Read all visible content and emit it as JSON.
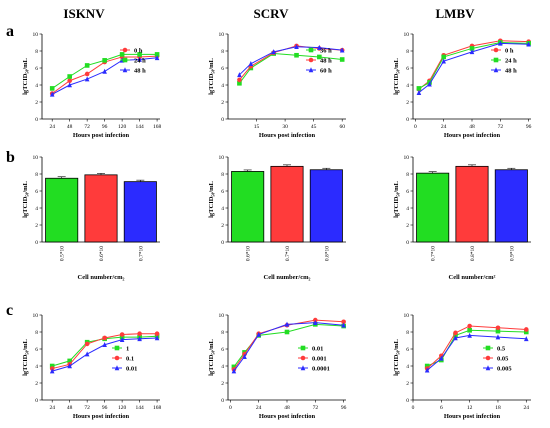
{
  "figure": {
    "virus_titles": [
      "ISKNV",
      "SCRV",
      "LMBV"
    ],
    "row_labels": [
      "a",
      "b",
      "c"
    ],
    "colors": {
      "green": "#22dd22",
      "red": "#ff3b3b",
      "blue": "#2b2bff"
    }
  },
  "chart_data": [
    {
      "id": "a-isknv",
      "type": "line",
      "row": 0,
      "col": 0,
      "xlabel": "Hours post infection",
      "ylabel": "lgTCID₅₀/mL",
      "x": [
        24,
        48,
        72,
        96,
        120,
        144,
        168
      ],
      "xticks": [
        "24",
        "48",
        "72",
        "96",
        "120",
        "144",
        "168"
      ],
      "xlim": [
        10,
        172
      ],
      "ylim": [
        0,
        10
      ],
      "yticks": [
        0,
        2,
        4,
        6,
        8,
        10
      ],
      "legend_position": "right",
      "series": [
        {
          "name": "0 h",
          "color": "#ff3b3b",
          "marker": "circle",
          "values": [
            3.0,
            4.5,
            5.3,
            6.7,
            7.3,
            7.3,
            7.4
          ]
        },
        {
          "name": "24 h",
          "color": "#22dd22",
          "marker": "square",
          "values": [
            3.6,
            5.0,
            6.3,
            6.9,
            7.6,
            7.6,
            7.6
          ]
        },
        {
          "name": "48 h",
          "color": "#2b2bff",
          "marker": "triangle",
          "values": [
            2.9,
            4.0,
            4.7,
            5.6,
            6.9,
            7.0,
            7.2
          ]
        }
      ]
    },
    {
      "id": "a-scrv",
      "type": "line",
      "row": 0,
      "col": 1,
      "xlabel": "Hours post infection",
      "ylabel": "lgTCID₅₀/mL",
      "x": [
        6,
        12,
        24,
        36,
        48,
        60
      ],
      "xticks": [
        "15",
        "30",
        "45",
        "60"
      ],
      "xtick_values": [
        15,
        30,
        45,
        60
      ],
      "xlim": [
        0,
        62
      ],
      "ylim": [
        0,
        10
      ],
      "yticks": [
        0,
        2,
        4,
        6,
        8,
        10
      ],
      "legend_position": "right",
      "series": [
        {
          "name": "36 h",
          "color": "#22dd22",
          "marker": "square",
          "values": [
            4.2,
            6.0,
            7.7,
            7.5,
            7.3,
            7.0
          ]
        },
        {
          "name": "48 h",
          "color": "#ff3b3b",
          "marker": "circle",
          "values": [
            4.6,
            6.2,
            7.8,
            8.6,
            8.3,
            8.1
          ]
        },
        {
          "name": "60 h",
          "color": "#2b2bff",
          "marker": "triangle",
          "values": [
            5.2,
            6.5,
            7.9,
            8.5,
            8.4,
            8.1
          ]
        }
      ]
    },
    {
      "id": "a-lmbv",
      "type": "line",
      "row": 0,
      "col": 2,
      "xlabel": "Hours post infection",
      "ylabel": "lgTCID₅₀/mL",
      "x": [
        3,
        12,
        24,
        48,
        72,
        96
      ],
      "xticks": [
        "0",
        "24",
        "48",
        "72",
        "96"
      ],
      "xtick_values": [
        0,
        24,
        48,
        72,
        96
      ],
      "xlim": [
        -2,
        98
      ],
      "ylim": [
        0,
        10
      ],
      "yticks": [
        0,
        2,
        4,
        6,
        8,
        10
      ],
      "legend_position": "right",
      "series": [
        {
          "name": "0 h",
          "color": "#ff3b3b",
          "marker": "circle",
          "values": [
            3.5,
            4.5,
            7.5,
            8.6,
            9.2,
            9.1
          ]
        },
        {
          "name": "24 h",
          "color": "#22dd22",
          "marker": "square",
          "values": [
            3.6,
            4.3,
            7.3,
            8.3,
            9.0,
            8.9
          ]
        },
        {
          "name": "48 h",
          "color": "#2b2bff",
          "marker": "triangle",
          "values": [
            3.1,
            4.1,
            6.8,
            7.9,
            8.9,
            8.8
          ]
        }
      ]
    },
    {
      "id": "b-isknv",
      "type": "bar",
      "row": 1,
      "col": 0,
      "xlabel": "Cell number/cm₂",
      "ylabel": "lgTCID₅₀/mL",
      "categories": [
        "0.5*10",
        "0.6*10",
        "0.7*10"
      ],
      "values": [
        7.5,
        7.9,
        7.1
      ],
      "bar_colors": [
        "#22dd22",
        "#ff3b3b",
        "#2b2bff"
      ],
      "ylim": [
        0,
        10
      ],
      "yticks": [
        0,
        2,
        4,
        6,
        8,
        10
      ]
    },
    {
      "id": "b-scrv",
      "type": "bar",
      "row": 1,
      "col": 1,
      "xlabel": "Cell number/cm₂",
      "ylabel": "lgTCID₅₀/mL",
      "categories": [
        "0.6*10",
        "0.7*10",
        "0.8*10"
      ],
      "values": [
        8.3,
        8.9,
        8.5
      ],
      "bar_colors": [
        "#22dd22",
        "#ff3b3b",
        "#2b2bff"
      ],
      "ylim": [
        0,
        10
      ],
      "yticks": [
        0,
        2,
        4,
        6,
        8,
        10
      ]
    },
    {
      "id": "b-lmbv",
      "type": "bar",
      "row": 1,
      "col": 2,
      "xlabel": "Cell number/cm²",
      "ylabel": "lgTCID₅₀/mL",
      "categories": [
        "0.7*10",
        "0.8*10",
        "0.9*10"
      ],
      "values": [
        8.1,
        8.9,
        8.5
      ],
      "bar_colors": [
        "#22dd22",
        "#ff3b3b",
        "#2b2bff"
      ],
      "ylim": [
        0,
        10
      ],
      "yticks": [
        0,
        2,
        4,
        6,
        8,
        10
      ]
    },
    {
      "id": "c-isknv",
      "type": "line",
      "row": 2,
      "col": 0,
      "xlabel": "Hours post infection",
      "ylabel": "lgTCID₅₀/mL",
      "x": [
        24,
        48,
        72,
        96,
        120,
        144,
        168
      ],
      "xticks": [
        "24",
        "48",
        "72",
        "96",
        "120",
        "144",
        "168"
      ],
      "xlim": [
        10,
        172
      ],
      "ylim": [
        0,
        10
      ],
      "yticks": [
        0,
        2,
        4,
        6,
        8,
        10
      ],
      "legend_position": "bottom-right",
      "series": [
        {
          "name": "1",
          "color": "#22dd22",
          "marker": "square",
          "values": [
            4.0,
            4.6,
            6.8,
            7.2,
            7.4,
            7.4,
            7.5
          ]
        },
        {
          "name": "0.1",
          "color": "#ff3b3b",
          "marker": "circle",
          "values": [
            3.7,
            4.2,
            6.6,
            7.3,
            7.7,
            7.8,
            7.8
          ]
        },
        {
          "name": "0.01",
          "color": "#2b2bff",
          "marker": "triangle",
          "values": [
            3.4,
            4.0,
            5.4,
            6.5,
            7.1,
            7.2,
            7.3
          ]
        }
      ]
    },
    {
      "id": "c-scrv",
      "type": "line",
      "row": 2,
      "col": 1,
      "xlabel": "Hours post infection",
      "ylabel": "lgTCID₅₀/mL",
      "x": [
        3,
        12,
        24,
        48,
        72,
        96
      ],
      "xticks": [
        "0",
        "24",
        "48",
        "72",
        "96"
      ],
      "xtick_values": [
        0,
        24,
        48,
        72,
        96
      ],
      "xlim": [
        -2,
        98
      ],
      "ylim": [
        0,
        10
      ],
      "yticks": [
        0,
        2,
        4,
        6,
        8,
        10
      ],
      "legend_position": "bottom-right",
      "series": [
        {
          "name": "0.01",
          "color": "#22dd22",
          "marker": "square",
          "values": [
            3.9,
            5.6,
            7.6,
            8.0,
            8.9,
            8.7
          ]
        },
        {
          "name": "0.001",
          "color": "#ff3b3b",
          "marker": "circle",
          "values": [
            3.6,
            5.4,
            7.8,
            8.8,
            9.4,
            9.2
          ]
        },
        {
          "name": "0.0001",
          "color": "#2b2bff",
          "marker": "triangle",
          "values": [
            3.4,
            5.1,
            7.7,
            8.9,
            9.1,
            8.8
          ]
        }
      ]
    },
    {
      "id": "c-lmbv",
      "type": "line",
      "row": 2,
      "col": 2,
      "xlabel": "Hours post infection",
      "ylabel": "lgTCID₅₀/mL",
      "x": [
        3,
        6,
        9,
        12,
        18,
        24
      ],
      "xticks": [
        "0",
        "6",
        "12",
        "18",
        "24"
      ],
      "xtick_values": [
        0,
        6,
        12,
        18,
        24
      ],
      "xlim": [
        0,
        25
      ],
      "ylim": [
        0,
        10
      ],
      "yticks": [
        0,
        2,
        4,
        6,
        8,
        10
      ],
      "legend_position": "bottom-right",
      "series": [
        {
          "name": "0.5",
          "color": "#22dd22",
          "marker": "square",
          "values": [
            4.0,
            4.7,
            7.6,
            8.2,
            8.1,
            8.0
          ]
        },
        {
          "name": "0.05",
          "color": "#ff3b3b",
          "marker": "circle",
          "values": [
            3.7,
            5.2,
            7.9,
            8.7,
            8.5,
            8.3
          ]
        },
        {
          "name": "0.005",
          "color": "#2b2bff",
          "marker": "triangle",
          "values": [
            3.5,
            4.9,
            7.3,
            7.6,
            7.4,
            7.2
          ]
        }
      ]
    }
  ]
}
